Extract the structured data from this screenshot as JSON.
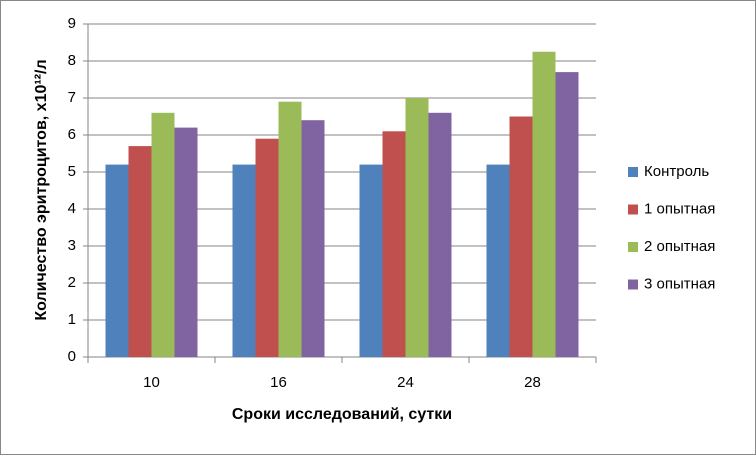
{
  "chart_data": {
    "type": "bar",
    "x_label": "Сроки исследований, сутки",
    "y_label": "Количество эритроцитов, х10¹²/л",
    "categories": [
      "10",
      "16",
      "24",
      "28"
    ],
    "series": [
      {
        "name": "Контроль",
        "color": "#4f81bd",
        "values": [
          5.2,
          5.2,
          5.2,
          5.2
        ]
      },
      {
        "name": "1 опытная",
        "color": "#c0504d",
        "values": [
          5.7,
          5.9,
          6.1,
          6.5
        ]
      },
      {
        "name": "2 опытная",
        "color": "#9bbb59",
        "values": [
          6.6,
          6.9,
          7.0,
          8.25
        ]
      },
      {
        "name": "3 опытная",
        "color": "#8064a2",
        "values": [
          6.2,
          6.4,
          6.6,
          7.7
        ]
      }
    ],
    "ylim": [
      0,
      9
    ],
    "yticks": [
      0,
      1,
      2,
      3,
      4,
      5,
      6,
      7,
      8,
      9
    ],
    "grid": true,
    "legend": "right"
  }
}
